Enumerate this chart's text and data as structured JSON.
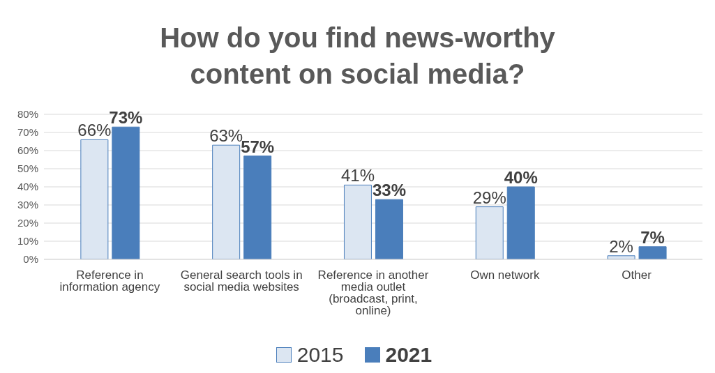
{
  "chart_data": {
    "type": "bar",
    "title": "How do you find news-worthy content on social media?",
    "categories": [
      "Reference in information agency",
      "General search tools in social media websites",
      "Reference in another media outlet (broadcast, print, online)",
      "Own network",
      "Other"
    ],
    "series": [
      {
        "name": "2015",
        "color": "#dce6f2",
        "values": [
          66,
          63,
          41,
          29,
          2
        ],
        "value_labels": [
          "66%",
          "63%",
          "41%",
          "29%",
          "2%"
        ]
      },
      {
        "name": "2021",
        "color": "#4a7ebb",
        "values": [
          73,
          57,
          33,
          40,
          7
        ],
        "value_labels": [
          "73%",
          "57%",
          "33%",
          "40%",
          "7%"
        ]
      }
    ],
    "ylim": [
      0,
      80
    ],
    "yticks": [
      {
        "value": 0,
        "label": "0%"
      },
      {
        "value": 10,
        "label": "10%"
      },
      {
        "value": 20,
        "label": "20%"
      },
      {
        "value": 30,
        "label": "30%"
      },
      {
        "value": 40,
        "label": "40%"
      },
      {
        "value": 50,
        "label": "50%"
      },
      {
        "value": 60,
        "label": "60%"
      },
      {
        "value": 70,
        "label": "70%"
      },
      {
        "value": 80,
        "label": "80%"
      }
    ],
    "grid": "y",
    "legend": "bottom"
  }
}
